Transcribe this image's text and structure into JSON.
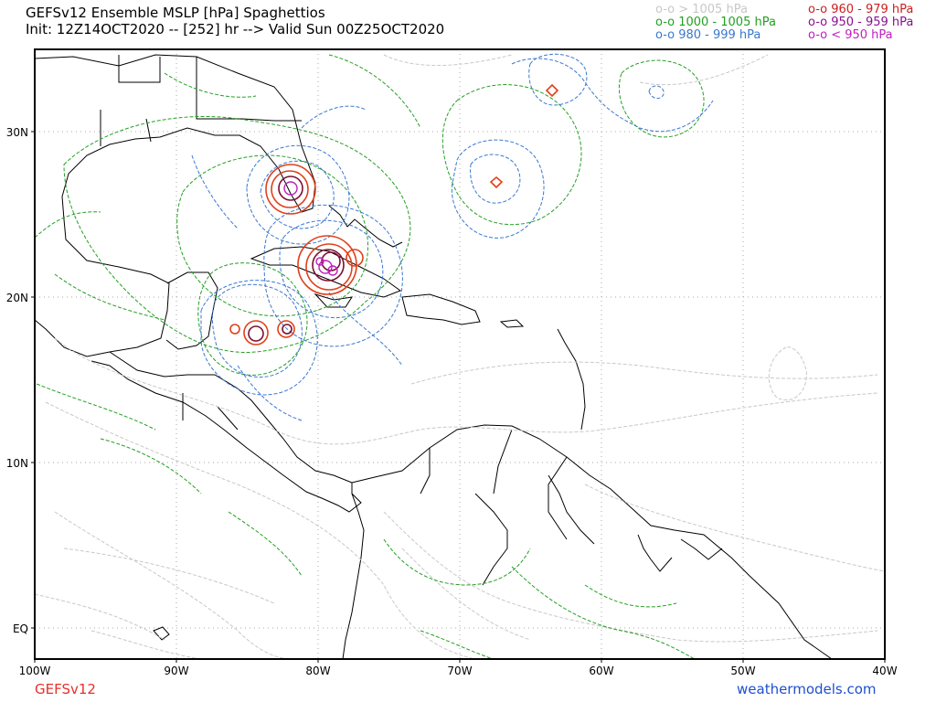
{
  "header": {
    "title": "GEFSv12 Ensemble MSLP [hPa] Spaghettios",
    "subtitle": "Init: 12Z14OCT2020 -- [252] hr --> Valid Sun 00Z25OCT2020"
  },
  "legend": [
    {
      "label": "o-o > 1005 hPa",
      "color": "#c8c8c8"
    },
    {
      "label": "o-o 1000 - 1005 hPa",
      "color": "#22a022"
    },
    {
      "label": "o-o 980 - 999 hPa",
      "color": "#3a78d0"
    },
    {
      "label": "o-o 960 - 979 hPa",
      "color": "#cc2020"
    },
    {
      "label": "o-o 950 - 959 hPa",
      "color": "#8a1090"
    },
    {
      "label": "o-o < 950 hPa",
      "color": "#c020c0"
    }
  ],
  "axes": {
    "lat_labels": [
      "30N",
      "20N",
      "10N",
      "EQ"
    ],
    "lon_labels": [
      "100W",
      "90W",
      "80W",
      "70W",
      "60W",
      "50W",
      "40W"
    ]
  },
  "map_extent": {
    "lon": [
      -100,
      -40
    ],
    "lat": [
      -2,
      35
    ]
  },
  "footer": {
    "left": "GEFSv12",
    "right": "weathermodels.com"
  }
}
